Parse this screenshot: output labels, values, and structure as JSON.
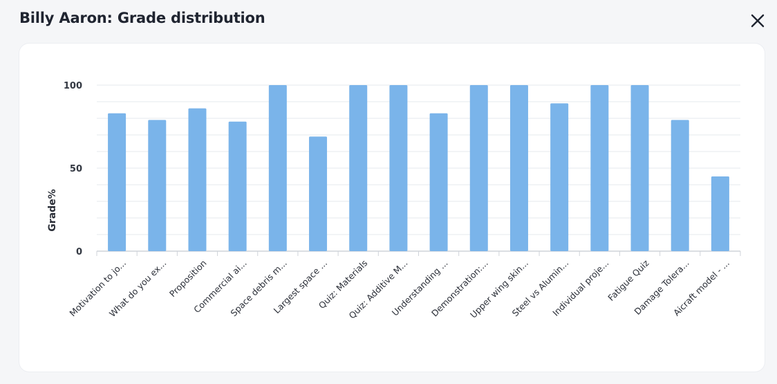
{
  "dialog": {
    "title": "Billy Aaron: Grade distribution",
    "close_icon": "close-icon"
  },
  "colors": {
    "bar": "#7ab4ea",
    "grid": "#e6e8ec",
    "axis": "#cfd3d9"
  },
  "chart_data": {
    "type": "bar",
    "categories": [
      "Motivation to jo...",
      "What do you ex...",
      "Proposition",
      "Commercial ai...",
      "Space debris m...",
      "Largest space ...",
      "Quiz: Materials",
      "Quiz: Additive M...",
      "Understanding ...",
      "Demonstration:...",
      "Upper wing skin...",
      "Steel vs Alumin...",
      "Individual proje...",
      "Fatigue Quiz",
      "Damage Tolera...",
      "Aicraft model - ..."
    ],
    "values": [
      83,
      79,
      86,
      78,
      100,
      69,
      100,
      100,
      83,
      100,
      100,
      89,
      100,
      100,
      79,
      45
    ],
    "ylabel": "Grade%",
    "xlabel": "",
    "ylim": [
      0,
      100
    ],
    "yticks": [
      0,
      50,
      100
    ],
    "grid": true,
    "legend": "none"
  }
}
